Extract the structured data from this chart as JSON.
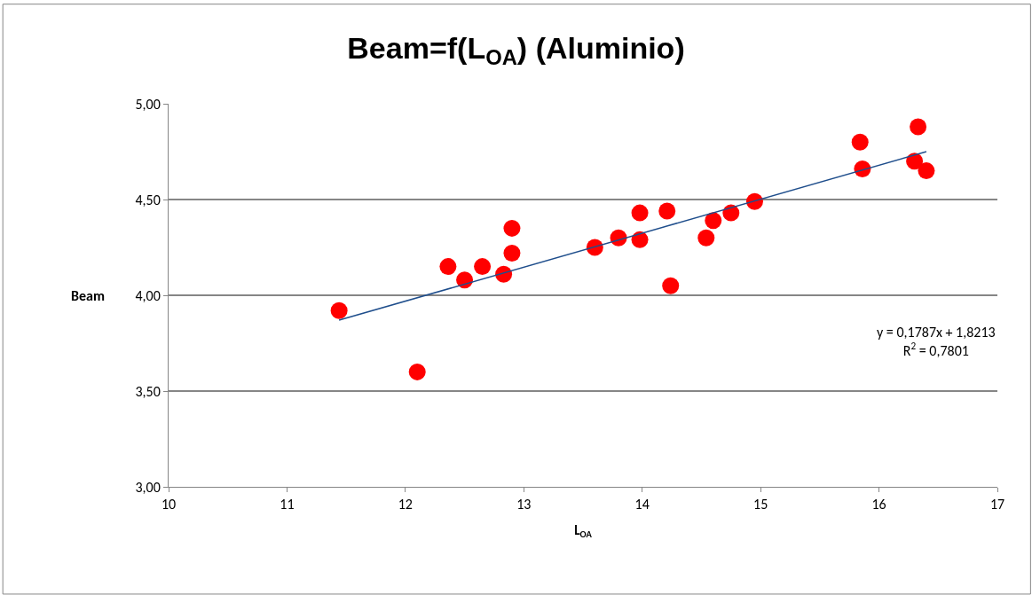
{
  "chart_data": {
    "type": "scatter",
    "title": "Beam=f(L$_{OA}$) (Aluminio)",
    "xlabel": "L$_{OA}$",
    "ylabel": "Beam",
    "xlim": [
      10,
      17
    ],
    "xticks": [
      10,
      11,
      12,
      13,
      14,
      15,
      16,
      17
    ],
    "ylim": [
      3,
      5
    ],
    "yticks": [
      {
        "value": 3,
        "label": "3,00"
      },
      {
        "value": 3.5,
        "label": "3,50"
      },
      {
        "value": 4,
        "label": "4,00"
      },
      {
        "value": 4.5,
        "label": "4,50"
      },
      {
        "value": 5,
        "label": "5,00"
      }
    ],
    "grid": "y",
    "series": [
      {
        "marker": "circle",
        "color": "#ff0000",
        "x": [
          11.44,
          12.1,
          12.36,
          12.5,
          12.65,
          12.83,
          12.9,
          12.9,
          13.6,
          13.8,
          13.98,
          13.98,
          14.21,
          14.24,
          14.54,
          14.6,
          14.75,
          14.95,
          15.84,
          15.86,
          16.33,
          16.3,
          16.4
        ],
        "values": [
          3.92,
          3.6,
          4.15,
          4.08,
          4.15,
          4.11,
          4.22,
          4.35,
          4.25,
          4.3,
          4.29,
          4.43,
          4.44,
          4.05,
          4.3,
          4.39,
          4.43,
          4.49,
          4.8,
          4.66,
          4.88,
          4.7,
          4.65
        ]
      },
      {
        "type": "line",
        "marker": "none",
        "color": "#1f4e8c",
        "x": [
          11.44,
          16.4
        ],
        "values": [
          3.87,
          4.75
        ]
      }
    ],
    "annotations": [
      "y = 0,1787x + 1,8213\nR$^{2}$ = 0,7801"
    ]
  }
}
